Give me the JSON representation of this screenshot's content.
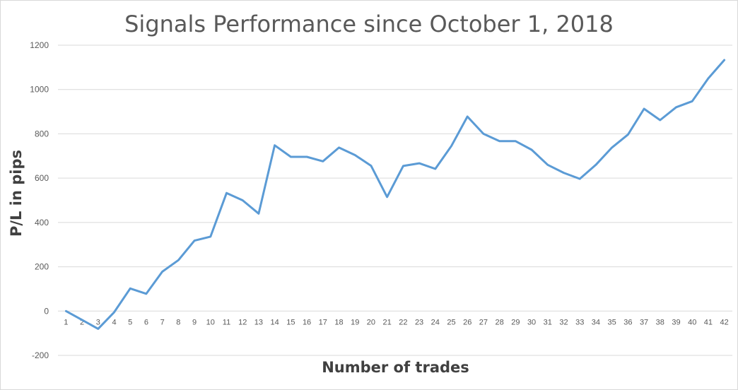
{
  "chart_data": {
    "type": "line",
    "title": "Signals Performance since October 1, 2018",
    "xlabel": "Number of trades",
    "ylabel": "P/L in pips",
    "ylim": [
      -200,
      1200
    ],
    "y_ticks": [
      -200,
      0,
      200,
      400,
      600,
      800,
      1000,
      1200
    ],
    "grid": true,
    "legend": "none",
    "x": [
      1,
      2,
      3,
      4,
      5,
      6,
      7,
      8,
      9,
      10,
      11,
      12,
      13,
      14,
      15,
      16,
      17,
      18,
      19,
      20,
      21,
      22,
      23,
      24,
      25,
      26,
      27,
      28,
      29,
      30,
      31,
      32,
      33,
      34,
      35,
      36,
      37,
      38,
      39,
      40,
      41,
      42
    ],
    "series": [
      {
        "color": "#5b9bd5",
        "values": [
          0,
          -40,
          -80,
          -5,
          102,
          78,
          178,
          230,
          318,
          336,
          533,
          500,
          440,
          748,
          696,
          696,
          676,
          738,
          704,
          656,
          515,
          655,
          667,
          642,
          745,
          878,
          800,
          767,
          767,
          728,
          660,
          624,
          597,
          660,
          738,
          797,
          913,
          862,
          920,
          947,
          1050,
          1133
        ]
      }
    ]
  }
}
